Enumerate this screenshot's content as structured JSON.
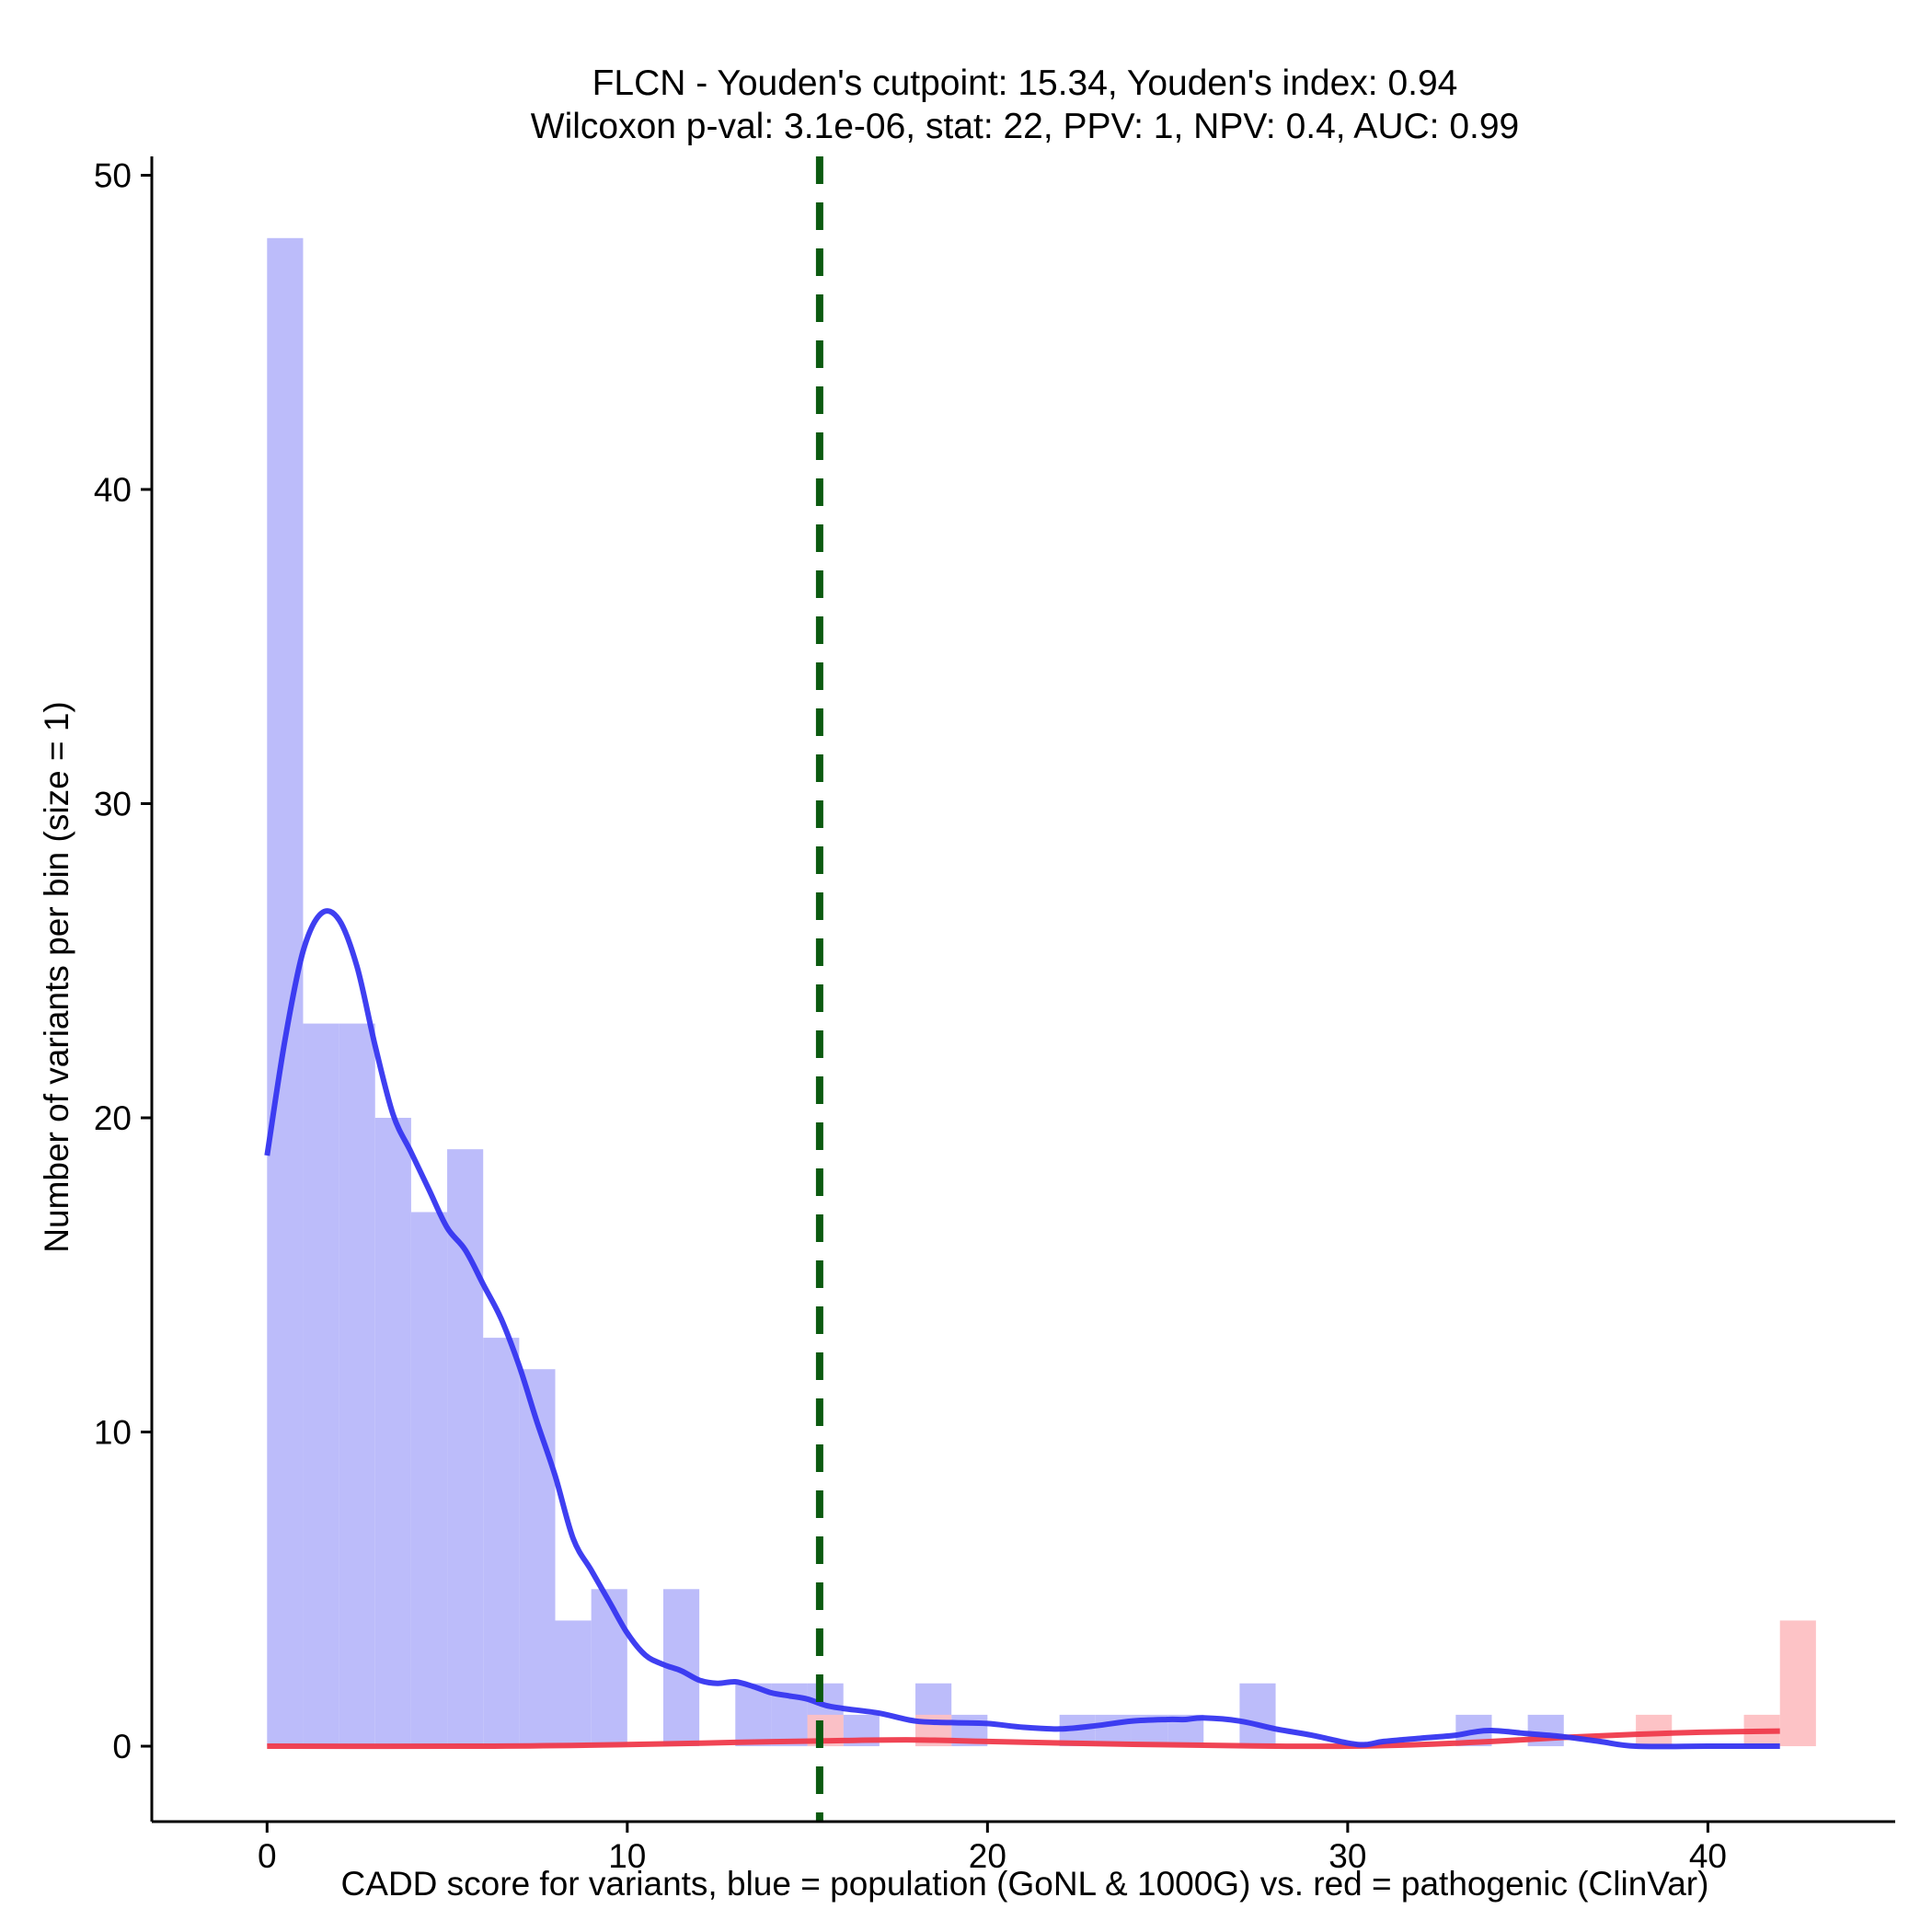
{
  "chart_data": {
    "type": "bar",
    "title_line1": "FLCN - Youden's cutpoint: 15.34, Youden's index: 0.94",
    "title_line2": "Wilcoxon p-val: 3.1e-06, stat: 22, PPV: 1, NPV: 0.4, AUC: 0.99",
    "xlabel": "CADD score for variants, blue = population (GoNL & 1000G) vs. red = pathogenic (ClinVar)",
    "ylabel": "Number of variants per bin (size = 1)",
    "xlim": [
      -3.2,
      45.2
    ],
    "ylim": [
      -2.4,
      50.6
    ],
    "x_ticks": [
      0,
      10,
      20,
      30,
      40
    ],
    "y_ticks": [
      0,
      10,
      20,
      30,
      40,
      50
    ],
    "cutpoint": 15.34,
    "colors": {
      "population_bars": "#bcbcfa",
      "pathogenic_bars": "#fdc0c3",
      "population_density": "#3535f0",
      "pathogenic_density": "#ef3a4b",
      "cutpoint_line": "#0b5a10"
    },
    "series": [
      {
        "name": "population",
        "bins": [
          {
            "x0": 0,
            "x1": 1,
            "count": 48
          },
          {
            "x0": 1,
            "x1": 2,
            "count": 23
          },
          {
            "x0": 2,
            "x1": 3,
            "count": 23
          },
          {
            "x0": 3,
            "x1": 4,
            "count": 20
          },
          {
            "x0": 4,
            "x1": 5,
            "count": 17
          },
          {
            "x0": 5,
            "x1": 6,
            "count": 19
          },
          {
            "x0": 6,
            "x1": 7,
            "count": 13
          },
          {
            "x0": 7,
            "x1": 8,
            "count": 12
          },
          {
            "x0": 8,
            "x1": 9,
            "count": 4
          },
          {
            "x0": 9,
            "x1": 10,
            "count": 5
          },
          {
            "x0": 11,
            "x1": 12,
            "count": 5
          },
          {
            "x0": 13,
            "x1": 14,
            "count": 2
          },
          {
            "x0": 14,
            "x1": 15,
            "count": 2
          },
          {
            "x0": 15,
            "x1": 16,
            "count": 2
          },
          {
            "x0": 16,
            "x1": 17,
            "count": 1
          },
          {
            "x0": 18,
            "x1": 19,
            "count": 2
          },
          {
            "x0": 19,
            "x1": 20,
            "count": 1
          },
          {
            "x0": 22,
            "x1": 23,
            "count": 1
          },
          {
            "x0": 23,
            "x1": 24,
            "count": 1
          },
          {
            "x0": 24,
            "x1": 25,
            "count": 1
          },
          {
            "x0": 25,
            "x1": 26,
            "count": 1
          },
          {
            "x0": 27,
            "x1": 28,
            "count": 2
          },
          {
            "x0": 33,
            "x1": 34,
            "count": 1
          },
          {
            "x0": 35,
            "x1": 36,
            "count": 1
          }
        ],
        "density_curve": [
          [
            0,
            18.8
          ],
          [
            0.5,
            22.5
          ],
          [
            1,
            25.3
          ],
          [
            1.5,
            26.5
          ],
          [
            2,
            26.3
          ],
          [
            2.5,
            24.8
          ],
          [
            3,
            22.3
          ],
          [
            3.5,
            20.1
          ],
          [
            4,
            18.9
          ],
          [
            4.5,
            17.7
          ],
          [
            5,
            16.5
          ],
          [
            5.5,
            15.8
          ],
          [
            6,
            14.7
          ],
          [
            6.5,
            13.6
          ],
          [
            7,
            12.1
          ],
          [
            7.5,
            10.3
          ],
          [
            8,
            8.6
          ],
          [
            8.5,
            6.6
          ],
          [
            9,
            5.6
          ],
          [
            9.5,
            4.6
          ],
          [
            10,
            3.6
          ],
          [
            10.5,
            2.9
          ],
          [
            11,
            2.6
          ],
          [
            11.5,
            2.4
          ],
          [
            12,
            2.1
          ],
          [
            12.5,
            2.0
          ],
          [
            13,
            2.05
          ],
          [
            13.5,
            1.9
          ],
          [
            14,
            1.7
          ],
          [
            14.5,
            1.6
          ],
          [
            15,
            1.5
          ],
          [
            15.5,
            1.3
          ],
          [
            16,
            1.2
          ],
          [
            17,
            1.05
          ],
          [
            18,
            0.8
          ],
          [
            19,
            0.75
          ],
          [
            20,
            0.72
          ],
          [
            21,
            0.6
          ],
          [
            22,
            0.55
          ],
          [
            23,
            0.65
          ],
          [
            24,
            0.8
          ],
          [
            25,
            0.85
          ],
          [
            25.5,
            0.85
          ],
          [
            26,
            0.9
          ],
          [
            27,
            0.8
          ],
          [
            28,
            0.55
          ],
          [
            29,
            0.35
          ],
          [
            30,
            0.1
          ],
          [
            30.5,
            0.05
          ],
          [
            31,
            0.15
          ],
          [
            32,
            0.25
          ],
          [
            33,
            0.35
          ],
          [
            33.5,
            0.45
          ],
          [
            34,
            0.5
          ],
          [
            35,
            0.4
          ],
          [
            36,
            0.3
          ],
          [
            37,
            0.15
          ],
          [
            38,
            0.0
          ],
          [
            40,
            0.0
          ],
          [
            42,
            0.0
          ]
        ]
      },
      {
        "name": "pathogenic",
        "bins": [
          {
            "x0": 15,
            "x1": 16,
            "count": 1
          },
          {
            "x0": 18,
            "x1": 19,
            "count": 1
          },
          {
            "x0": 38,
            "x1": 39,
            "count": 1
          },
          {
            "x0": 41,
            "x1": 42,
            "count": 1
          },
          {
            "x0": 42,
            "x1": 43,
            "count": 4
          }
        ],
        "density_curve": [
          [
            0,
            0.0
          ],
          [
            6,
            0.0
          ],
          [
            10,
            0.05
          ],
          [
            13,
            0.12
          ],
          [
            16,
            0.18
          ],
          [
            18,
            0.2
          ],
          [
            20,
            0.15
          ],
          [
            23,
            0.08
          ],
          [
            26,
            0.03
          ],
          [
            28,
            0.0
          ],
          [
            30,
            0.0
          ],
          [
            32,
            0.05
          ],
          [
            34,
            0.15
          ],
          [
            36,
            0.28
          ],
          [
            38,
            0.38
          ],
          [
            40,
            0.45
          ],
          [
            42,
            0.48
          ]
        ]
      }
    ]
  }
}
